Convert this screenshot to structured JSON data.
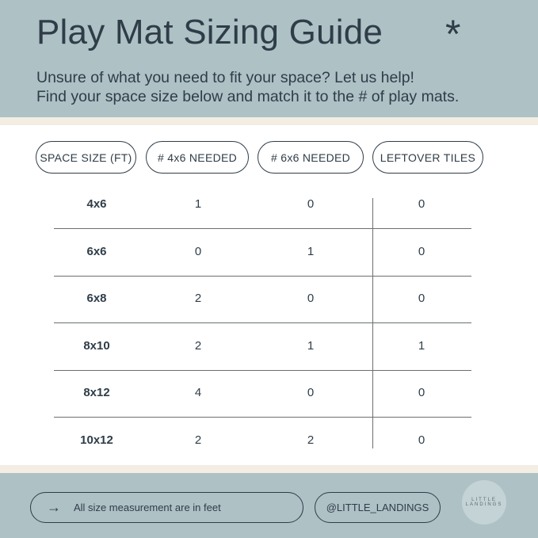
{
  "header": {
    "title": "Play Mat Sizing Guide",
    "icon": "asterisk-icon",
    "subtitle_line1": "Unsure of what you need to fit your space? Let us help!",
    "subtitle_line2": "Find your space size below and match it to the # of play mats."
  },
  "table": {
    "columns": [
      "SPACE SIZE (FT)",
      "# 4x6 NEEDED",
      "# 6x6 NEEDED",
      "LEFTOVER TILES"
    ],
    "rows": [
      [
        "4x6",
        "1",
        "0",
        "0"
      ],
      [
        "6x6",
        "0",
        "1",
        "0"
      ],
      [
        "6x8",
        "2",
        "0",
        "0"
      ],
      [
        "8x10",
        "2",
        "1",
        "1"
      ],
      [
        "8x12",
        "4",
        "0",
        "0"
      ],
      [
        "10x12",
        "2",
        "2",
        "0"
      ]
    ]
  },
  "footer": {
    "note_arrow": "→",
    "note": "All size measurement are in feet",
    "handle": "@LITTLE_LANDINGS",
    "logo_line1": "LITTLE",
    "logo_line2": "LANDINGS"
  },
  "colors": {
    "panel": "#aec1c5",
    "band": "#f3ede3",
    "text": "#2f3d48"
  }
}
